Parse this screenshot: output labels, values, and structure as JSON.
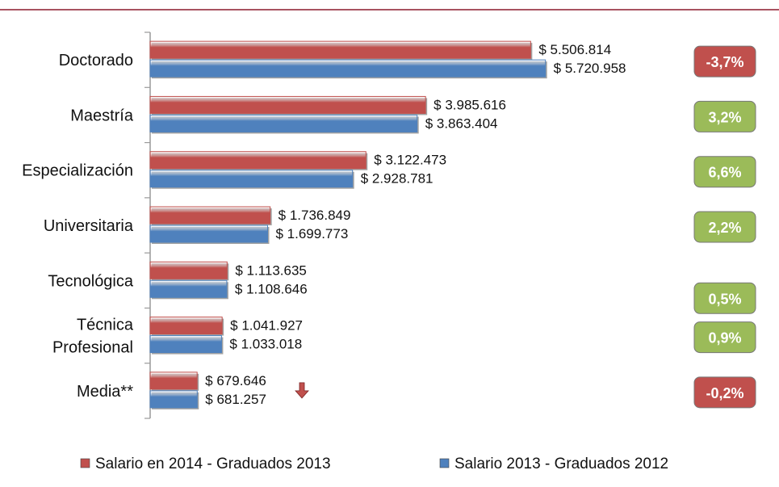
{
  "chart_data": {
    "type": "bar",
    "orientation": "horizontal",
    "categories": [
      [
        "Doctorado"
      ],
      [
        "Maestría"
      ],
      [
        "Especialización"
      ],
      [
        "Universitaria"
      ],
      [
        "Tecnológica"
      ],
      [
        "Técnica",
        "Profesional"
      ],
      [
        "Media**"
      ]
    ],
    "series": [
      {
        "name": "Salario en 2014 - Graduados 2013",
        "color": "#c0504d",
        "values": [
          5506814,
          3985616,
          3122473,
          1736849,
          1113635,
          1041927,
          679646
        ],
        "labels": [
          "$ 5.506.814",
          "$ 3.985.616",
          "$ 3.122.473",
          "$ 1.736.849",
          "$ 1.113.635",
          "$ 1.041.927",
          "$ 679.646"
        ]
      },
      {
        "name": "Salario 2013 - Graduados 2012",
        "color": "#4f81bd",
        "values": [
          5720958,
          3863404,
          2928781,
          1699773,
          1108646,
          1033018,
          681257
        ],
        "labels": [
          "$ 5.720.958",
          "$ 3.863.404",
          "$ 2.928.781",
          "$ 1.699.773",
          "$ 1.108.646",
          "$ 1.033.018",
          "$ 681.257"
        ]
      }
    ],
    "xlim": [
      0,
      8400000
    ],
    "grid": false,
    "legend": "bottom",
    "annotations": [
      {
        "text": "-3,7%",
        "trend": "down",
        "color": "#c0504d"
      },
      {
        "text": "3,2%",
        "trend": "up",
        "color": "#9bbb59"
      },
      {
        "text": "6,6%",
        "trend": "up",
        "color": "#9bbb59"
      },
      {
        "text": "2,2%",
        "trend": "up",
        "color": "#9bbb59"
      },
      {
        "text": "0,5%",
        "trend": "up",
        "color": "#9bbb59"
      },
      {
        "text": "0,9%",
        "trend": "up",
        "color": "#9bbb59"
      },
      {
        "text": "-0,2%",
        "trend": "down",
        "color": "#c0504d"
      }
    ],
    "arrow_marker": {
      "category_index": 6,
      "direction": "down",
      "color": "#c0504d"
    }
  },
  "colors": {
    "top_rule": "#8b1a2b",
    "axis": "#9a9a9a"
  }
}
